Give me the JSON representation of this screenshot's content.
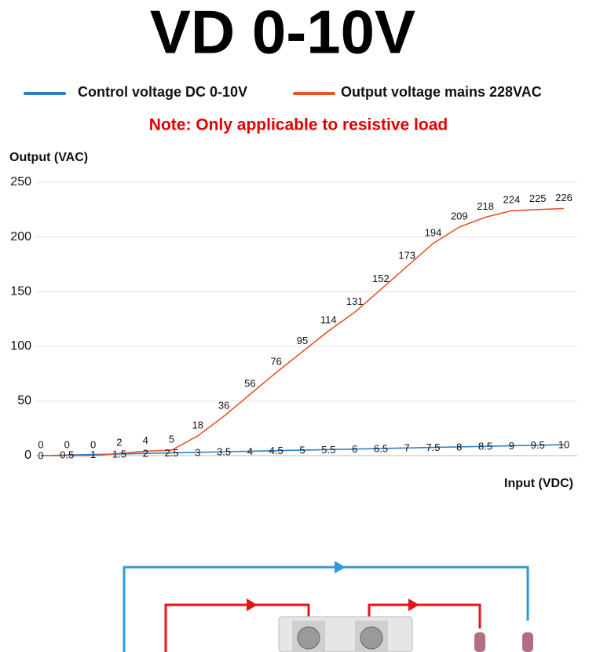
{
  "title": "VD 0-10V",
  "note": "Note: Only applicable to resistive load",
  "chart_data": {
    "type": "line",
    "y_label": "Output (VAC)",
    "x_label": "Input (VDC)",
    "x": [
      0,
      0.5,
      1,
      1.5,
      2,
      2.5,
      3,
      3.5,
      4,
      4.5,
      5,
      5.5,
      6,
      6.5,
      7,
      7.5,
      8,
      8.5,
      9,
      9.5,
      10
    ],
    "xlim": [
      0,
      10
    ],
    "ylim": [
      0,
      250
    ],
    "yticks": [
      0,
      50,
      100,
      150,
      200,
      250
    ],
    "grid": true,
    "series": [
      {
        "name": "Control voltage DC 0-10V",
        "color": "#2f7fc8",
        "values": [
          0,
          0.5,
          1,
          1.5,
          2,
          2.5,
          3,
          3.5,
          4,
          4.5,
          5,
          5.5,
          6,
          6.5,
          7,
          7.5,
          8,
          8.5,
          9,
          9.5,
          10
        ]
      },
      {
        "name": "Output voltage mains 228VAC",
        "color": "#e8552a",
        "values": [
          0,
          0,
          0,
          2,
          4,
          5,
          18,
          36,
          56,
          76,
          95,
          114,
          131,
          152,
          173,
          194,
          209,
          218,
          224,
          225,
          226
        ]
      }
    ]
  }
}
